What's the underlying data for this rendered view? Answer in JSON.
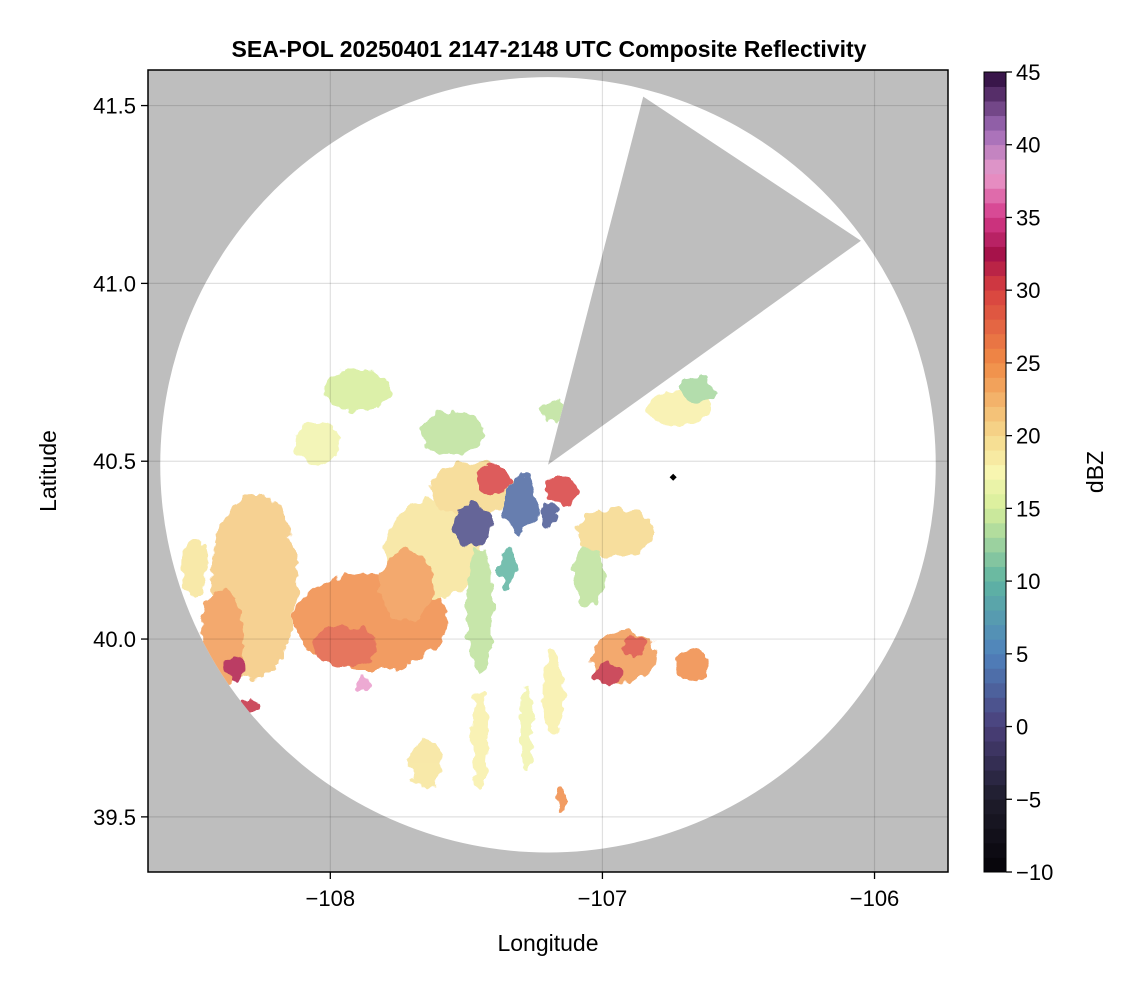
{
  "chart_data": {
    "type": "heatmap",
    "title": "SEA-POL 20250401 2147-2148 UTC Composite Reflectivity",
    "xlabel": "Longitude",
    "ylabel": "Latitude",
    "xlim": [
      -108.67,
      -105.73
    ],
    "ylim": [
      39.345,
      41.6
    ],
    "x_ticks": [
      {
        "value": -108,
        "label": "−108"
      },
      {
        "value": -107,
        "label": "−107"
      },
      {
        "value": -106,
        "label": "−106"
      }
    ],
    "y_ticks": [
      {
        "value": 39.5,
        "label": "39.5"
      },
      {
        "value": 40.0,
        "label": "40.0"
      },
      {
        "value": 40.5,
        "label": "40.5"
      },
      {
        "value": 41.0,
        "label": "41.0"
      },
      {
        "value": 41.5,
        "label": "41.5"
      }
    ],
    "grid": true,
    "background_color": "#bebebe",
    "coverage": {
      "center": [
        -107.2,
        40.49
      ],
      "radius_deg_lon": 1.425,
      "radius_deg_lat": 1.09,
      "blocked_sector_vertices": [
        [
          -107.2,
          40.49
        ],
        [
          -106.85,
          41.525
        ],
        [
          -106.05,
          41.12
        ]
      ]
    },
    "radar_site": {
      "lon": -106.74,
      "lat": 40.455
    },
    "colorbar": {
      "label": "dBZ",
      "range": [
        -10,
        45
      ],
      "ticks": [
        {
          "value": 45,
          "label": "45"
        },
        {
          "value": 40,
          "label": "40"
        },
        {
          "value": 35,
          "label": "35"
        },
        {
          "value": 30,
          "label": "30"
        },
        {
          "value": 25,
          "label": "25"
        },
        {
          "value": 20,
          "label": "20"
        },
        {
          "value": 15,
          "label": "15"
        },
        {
          "value": 10,
          "label": "10"
        },
        {
          "value": 5,
          "label": "5"
        },
        {
          "value": 0,
          "label": "0"
        },
        {
          "value": -5,
          "label": "−5"
        },
        {
          "value": -10,
          "label": "−10"
        }
      ],
      "stops": [
        {
          "value": -10,
          "color": "#050308"
        },
        {
          "value": -5,
          "color": "#1e1c2b"
        },
        {
          "value": 0,
          "color": "#4a3f7a"
        },
        {
          "value": 5,
          "color": "#4f82bd"
        },
        {
          "value": 10,
          "color": "#5fb4a2"
        },
        {
          "value": 15,
          "color": "#d6ee9b"
        },
        {
          "value": 17.5,
          "color": "#f8f6b0"
        },
        {
          "value": 20,
          "color": "#f6d98d"
        },
        {
          "value": 25,
          "color": "#f08b46"
        },
        {
          "value": 30,
          "color": "#d8403f"
        },
        {
          "value": 32.5,
          "color": "#a6124a"
        },
        {
          "value": 35,
          "color": "#d43a8a"
        },
        {
          "value": 38,
          "color": "#ea9ccc"
        },
        {
          "value": 41,
          "color": "#9e6bb6"
        },
        {
          "value": 45,
          "color": "#2b0a3a"
        }
      ]
    },
    "echo_regions": [
      {
        "lon": -108.28,
        "lat": 40.15,
        "rlon": 0.16,
        "rlat": 0.26,
        "dbz": 21
      },
      {
        "lon": -108.4,
        "lat": 40.0,
        "rlon": 0.08,
        "rlat": 0.14,
        "dbz": 24
      },
      {
        "lon": -108.35,
        "lat": 39.92,
        "rlon": 0.04,
        "rlat": 0.03,
        "dbz": 32
      },
      {
        "lon": -108.3,
        "lat": 39.81,
        "rlon": 0.03,
        "rlat": 0.02,
        "dbz": 31
      },
      {
        "lon": -108.5,
        "lat": 40.2,
        "rlon": 0.05,
        "rlat": 0.08,
        "dbz": 19
      },
      {
        "lon": -108.05,
        "lat": 40.55,
        "rlon": 0.08,
        "rlat": 0.06,
        "dbz": 17
      },
      {
        "lon": -107.9,
        "lat": 40.7,
        "rlon": 0.12,
        "rlat": 0.06,
        "dbz": 15
      },
      {
        "lon": -107.85,
        "lat": 40.05,
        "rlon": 0.28,
        "rlat": 0.14,
        "dbz": 25
      },
      {
        "lon": -107.95,
        "lat": 39.98,
        "rlon": 0.12,
        "rlat": 0.06,
        "dbz": 28
      },
      {
        "lon": -107.88,
        "lat": 39.87,
        "rlon": 0.03,
        "rlat": 0.02,
        "dbz": 38
      },
      {
        "lon": -107.62,
        "lat": 40.25,
        "rlon": 0.18,
        "rlat": 0.14,
        "dbz": 19
      },
      {
        "lon": -107.72,
        "lat": 40.15,
        "rlon": 0.1,
        "rlat": 0.1,
        "dbz": 24
      },
      {
        "lon": -107.55,
        "lat": 40.58,
        "rlon": 0.12,
        "rlat": 0.06,
        "dbz": 14
      },
      {
        "lon": -107.48,
        "lat": 40.42,
        "rlon": 0.15,
        "rlat": 0.08,
        "dbz": 20
      },
      {
        "lon": -107.4,
        "lat": 40.45,
        "rlon": 0.06,
        "rlat": 0.04,
        "dbz": 30
      },
      {
        "lon": -107.48,
        "lat": 40.32,
        "rlon": 0.07,
        "rlat": 0.06,
        "dbz": 1
      },
      {
        "lon": -107.3,
        "lat": 40.38,
        "rlon": 0.06,
        "rlat": 0.08,
        "dbz": 3
      },
      {
        "lon": -107.15,
        "lat": 40.42,
        "rlon": 0.06,
        "rlat": 0.04,
        "dbz": 30
      },
      {
        "lon": -107.2,
        "lat": 40.35,
        "rlon": 0.04,
        "rlat": 0.03,
        "dbz": 2
      },
      {
        "lon": -107.45,
        "lat": 40.08,
        "rlon": 0.05,
        "rlat": 0.18,
        "dbz": 14
      },
      {
        "lon": -107.35,
        "lat": 40.2,
        "rlon": 0.03,
        "rlat": 0.06,
        "dbz": 10
      },
      {
        "lon": -107.45,
        "lat": 39.72,
        "rlon": 0.03,
        "rlat": 0.14,
        "dbz": 18
      },
      {
        "lon": -107.65,
        "lat": 39.65,
        "rlon": 0.06,
        "rlat": 0.07,
        "dbz": 19
      },
      {
        "lon": -107.28,
        "lat": 39.75,
        "rlon": 0.025,
        "rlat": 0.12,
        "dbz": 17
      },
      {
        "lon": -107.18,
        "lat": 39.85,
        "rlon": 0.04,
        "rlat": 0.12,
        "dbz": 18
      },
      {
        "lon": -107.15,
        "lat": 39.55,
        "rlon": 0.02,
        "rlat": 0.03,
        "dbz": 25
      },
      {
        "lon": -107.05,
        "lat": 40.18,
        "rlon": 0.06,
        "rlat": 0.08,
        "dbz": 14
      },
      {
        "lon": -106.95,
        "lat": 40.3,
        "rlon": 0.14,
        "rlat": 0.07,
        "dbz": 20
      },
      {
        "lon": -106.92,
        "lat": 39.95,
        "rlon": 0.12,
        "rlat": 0.07,
        "dbz": 24
      },
      {
        "lon": -106.98,
        "lat": 39.9,
        "rlon": 0.05,
        "rlat": 0.03,
        "dbz": 31
      },
      {
        "lon": -106.88,
        "lat": 39.98,
        "rlon": 0.04,
        "rlat": 0.03,
        "dbz": 29
      },
      {
        "lon": -106.67,
        "lat": 39.93,
        "rlon": 0.06,
        "rlat": 0.05,
        "dbz": 25
      },
      {
        "lon": -106.72,
        "lat": 40.65,
        "rlon": 0.12,
        "rlat": 0.05,
        "dbz": 18
      },
      {
        "lon": -106.65,
        "lat": 40.7,
        "rlon": 0.06,
        "rlat": 0.04,
        "dbz": 13
      },
      {
        "lon": -107.18,
        "lat": 40.64,
        "rlon": 0.04,
        "rlat": 0.03,
        "dbz": 14
      }
    ]
  }
}
